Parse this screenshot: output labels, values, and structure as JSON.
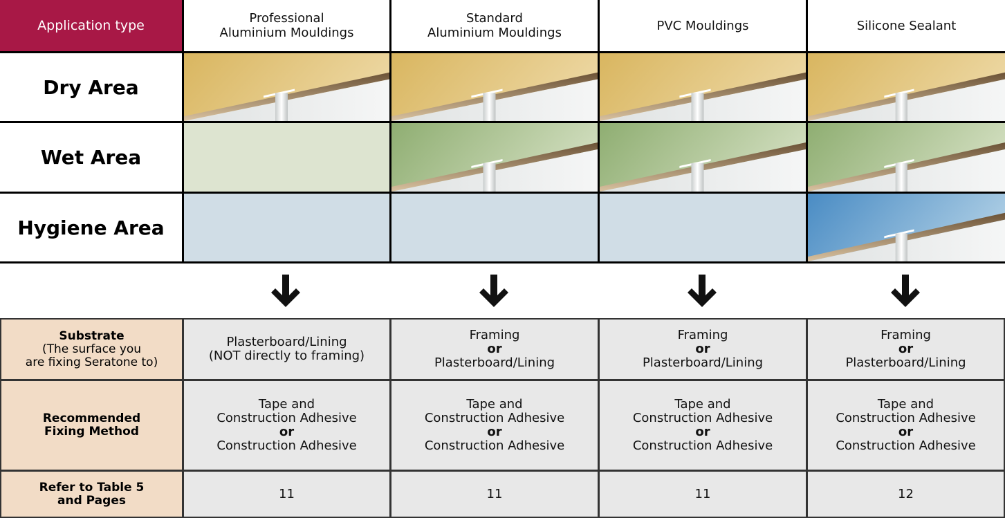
{
  "header": {
    "label": "Application type",
    "columns": [
      [
        "Professional",
        "Aluminium Mouldings"
      ],
      [
        "Standard",
        "Aluminium Mouldings"
      ],
      [
        "PVC Mouldings"
      ],
      [
        "Silicone Sealant"
      ]
    ]
  },
  "areas": [
    "Dry Area",
    "Wet Area",
    "Hygiene Area"
  ],
  "details": {
    "rows": [
      {
        "label": [
          "Substrate",
          "(The surface you",
          "are fixing Seratone to)"
        ],
        "cells": [
          [
            "Plasterboard/Lining",
            "(NOT directly to framing)"
          ],
          [
            "Framing",
            "or",
            "Plasterboard/Lining"
          ],
          [
            "Framing",
            "or",
            "Plasterboard/Lining"
          ],
          [
            "Framing",
            "or",
            "Plasterboard/Lining"
          ]
        ]
      },
      {
        "label": [
          "Recommended",
          "Fixing Method"
        ],
        "cells": [
          [
            "Tape and",
            "Construction Adhesive",
            "or",
            "Construction Adhesive"
          ],
          [
            "Tape and",
            "Construction Adhesive",
            "or",
            "Construction Adhesive"
          ],
          [
            "Tape and",
            "Construction Adhesive",
            "or",
            "Construction Adhesive"
          ],
          [
            "Tape and",
            "Construction Adhesive",
            "or",
            "Construction Adhesive"
          ]
        ]
      },
      {
        "label": [
          "Refer to Table 5",
          "and Pages"
        ],
        "cells": [
          [
            "11"
          ],
          [
            "11"
          ],
          [
            "11"
          ],
          [
            "12"
          ]
        ]
      }
    ]
  }
}
